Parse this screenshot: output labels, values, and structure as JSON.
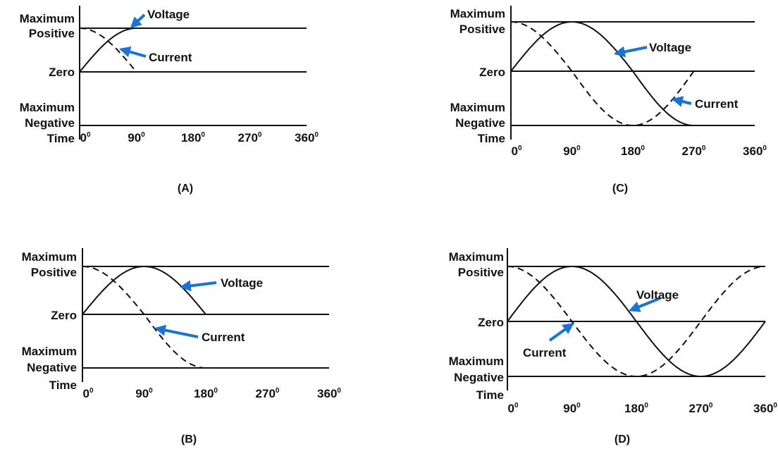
{
  "labels": {
    "max_positive": [
      "Maximum",
      "Positive"
    ],
    "zero": "Zero",
    "max_negative": [
      "Maximum",
      "Negative"
    ],
    "time": "Time",
    "voltage": "Voltage",
    "current": "Current"
  },
  "ticks": [
    {
      "value": "0",
      "sup": "0"
    },
    {
      "value": "90",
      "sup": "0"
    },
    {
      "value": "180",
      "sup": "0"
    },
    {
      "value": "270",
      "sup": "0"
    },
    {
      "value": "360",
      "sup": "0"
    }
  ],
  "panels": [
    {
      "caption": "(A)",
      "voltage_end_deg": 90,
      "current_end_deg": 90
    },
    {
      "caption": "(B)",
      "voltage_end_deg": 180,
      "current_end_deg": 180
    },
    {
      "caption": "(C)",
      "voltage_end_deg": 270,
      "current_end_deg": 270
    },
    {
      "caption": "(D)",
      "voltage_end_deg": 360,
      "current_end_deg": 360
    }
  ],
  "colors": {
    "arrow": "#1a74d0",
    "line": "#111111"
  }
}
